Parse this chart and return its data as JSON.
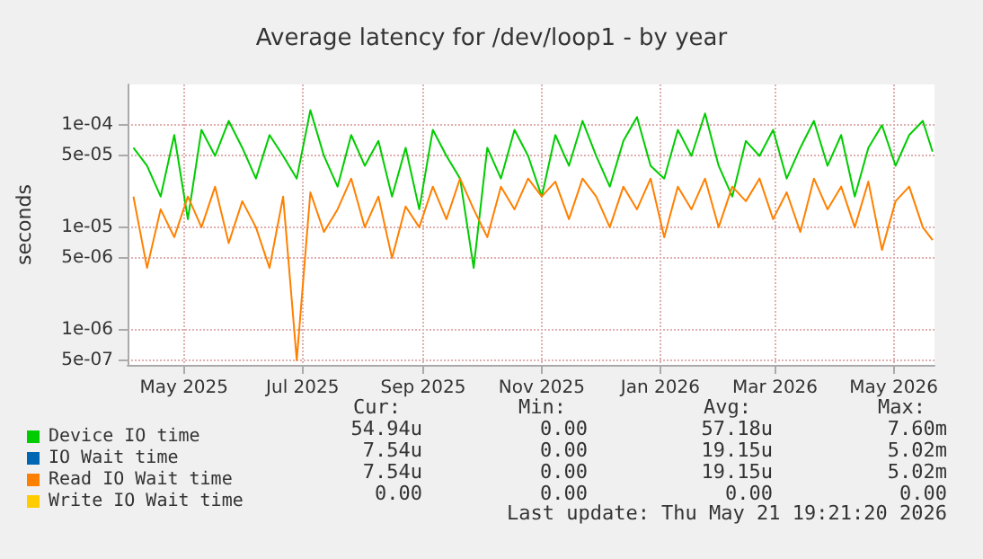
{
  "chart_data": {
    "type": "line",
    "title": "Average latency for /dev/loop1 - by year",
    "ylabel": "seconds",
    "log": "y",
    "grid": true,
    "legend": "bottom",
    "x": [
      "2025-04-05",
      "2025-04-12",
      "2025-04-19",
      "2025-04-26",
      "2025-05-03",
      "2025-05-10",
      "2025-05-17",
      "2025-05-24",
      "2025-05-31",
      "2025-06-07",
      "2025-06-14",
      "2025-06-21",
      "2025-06-28",
      "2025-07-05",
      "2025-07-12",
      "2025-07-19",
      "2025-07-26",
      "2025-08-02",
      "2025-08-09",
      "2025-08-16",
      "2025-08-23",
      "2025-08-30",
      "2025-09-06",
      "2025-09-13",
      "2025-09-20",
      "2025-09-27",
      "2025-10-04",
      "2025-10-11",
      "2025-10-18",
      "2025-10-25",
      "2025-11-01",
      "2025-11-08",
      "2025-11-15",
      "2025-11-22",
      "2025-11-29",
      "2025-12-06",
      "2025-12-13",
      "2025-12-20",
      "2025-12-27",
      "2026-01-03",
      "2026-01-10",
      "2026-01-17",
      "2026-01-24",
      "2026-01-31",
      "2026-02-07",
      "2026-02-14",
      "2026-02-21",
      "2026-02-28",
      "2026-03-07",
      "2026-03-14",
      "2026-03-21",
      "2026-03-28",
      "2026-04-04",
      "2026-04-11",
      "2026-04-18",
      "2026-04-25",
      "2026-05-02",
      "2026-05-09",
      "2026-05-16",
      "2026-05-21"
    ],
    "xlim": [
      "2025-04-02",
      "2026-05-22"
    ],
    "xticks": [
      {
        "value": "2025-05-01",
        "label": "May 2025"
      },
      {
        "value": "2025-07-01",
        "label": "Jul 2025"
      },
      {
        "value": "2025-09-01",
        "label": "Sep 2025"
      },
      {
        "value": "2025-11-01",
        "label": "Nov 2025"
      },
      {
        "value": "2026-01-01",
        "label": "Jan 2026"
      },
      {
        "value": "2026-03-01",
        "label": "Mar 2026"
      },
      {
        "value": "2026-05-01",
        "label": "May 2026"
      }
    ],
    "ylim": [
      4.5e-07,
      0.00025
    ],
    "yticks": [
      {
        "value": 5e-07,
        "label": "5e-07"
      },
      {
        "value": 1e-06,
        "label": "1e-06"
      },
      {
        "value": 5e-06,
        "label": "5e-06"
      },
      {
        "value": 1e-05,
        "label": "1e-05"
      },
      {
        "value": 5e-05,
        "label": "5e-05"
      },
      {
        "value": 0.0001,
        "label": "1e-04"
      }
    ],
    "series": [
      {
        "name": "Device IO time",
        "color": "#00cc00",
        "values": [
          6e-05,
          4e-05,
          2e-05,
          8e-05,
          1.2e-05,
          9e-05,
          5e-05,
          0.00011,
          6e-05,
          3e-05,
          8e-05,
          5e-05,
          3e-05,
          0.00014,
          5e-05,
          2.5e-05,
          8e-05,
          4e-05,
          7e-05,
          2e-05,
          6e-05,
          1.5e-05,
          9e-05,
          5e-05,
          3e-05,
          4e-06,
          6e-05,
          3e-05,
          9e-05,
          5e-05,
          2e-05,
          8e-05,
          4e-05,
          0.00011,
          5e-05,
          2.5e-05,
          7e-05,
          0.00012,
          4e-05,
          3e-05,
          9e-05,
          5e-05,
          0.00013,
          4e-05,
          2e-05,
          7e-05,
          5e-05,
          9e-05,
          3e-05,
          6e-05,
          0.00011,
          4e-05,
          8e-05,
          2e-05,
          6e-05,
          0.0001,
          4e-05,
          8e-05,
          0.00011,
          5.5e-05
        ]
      },
      {
        "name": "IO Wait time",
        "color": "#0066b3",
        "values": [
          null,
          null,
          null,
          null,
          null,
          null,
          null,
          null,
          null,
          null,
          null,
          null,
          null,
          null,
          null,
          null,
          null,
          null,
          null,
          null,
          null,
          null,
          null,
          null,
          null,
          null,
          null,
          null,
          null,
          null,
          null,
          null,
          null,
          null,
          null,
          null,
          null,
          null,
          null,
          null,
          null,
          null,
          null,
          null,
          null,
          null,
          null,
          null,
          null,
          null,
          null,
          null,
          null,
          null,
          null,
          null,
          null,
          null,
          null,
          null
        ]
      },
      {
        "name": "Read IO Wait time",
        "color": "#ff8000",
        "values": [
          2e-05,
          4e-06,
          1.5e-05,
          8e-06,
          2e-05,
          1e-05,
          2.5e-05,
          7e-06,
          1.8e-05,
          1e-05,
          4e-06,
          2e-05,
          5e-07,
          2.2e-05,
          9e-06,
          1.5e-05,
          3e-05,
          1e-05,
          2e-05,
          5e-06,
          1.6e-05,
          1e-05,
          2.5e-05,
          1.2e-05,
          3e-05,
          1.5e-05,
          8e-06,
          2.5e-05,
          1.5e-05,
          3e-05,
          2e-05,
          2.8e-05,
          1.2e-05,
          3e-05,
          2e-05,
          1e-05,
          2.5e-05,
          1.5e-05,
          3e-05,
          8e-06,
          2.5e-05,
          1.5e-05,
          3e-05,
          1e-05,
          2.5e-05,
          1.8e-05,
          3e-05,
          1.2e-05,
          2.2e-05,
          9e-06,
          3e-05,
          1.5e-05,
          2.5e-05,
          1e-05,
          2.8e-05,
          6e-06,
          1.8e-05,
          2.5e-05,
          1e-05,
          7.5e-06
        ]
      },
      {
        "name": "Write IO Wait time",
        "color": "#ffcc00",
        "values": [
          null,
          null,
          null,
          null,
          null,
          null,
          null,
          null,
          null,
          null,
          null,
          null,
          null,
          null,
          null,
          null,
          null,
          null,
          null,
          null,
          null,
          null,
          null,
          null,
          null,
          null,
          null,
          null,
          null,
          null,
          null,
          null,
          null,
          null,
          null,
          null,
          null,
          null,
          null,
          null,
          null,
          null,
          null,
          null,
          null,
          null,
          null,
          null,
          null,
          null,
          null,
          null,
          null,
          null,
          null,
          null,
          null,
          null,
          null,
          null
        ]
      }
    ],
    "annotations": [
      "Cur:",
      "Min:",
      "Avg:",
      "Max:",
      "54.94u",
      "0.00",
      "57.18u",
      "7.60m",
      "7.54u",
      "0.00",
      "19.15u",
      "5.02m",
      "7.54u",
      "0.00",
      "19.15u",
      "5.02m",
      "0.00",
      "0.00",
      "0.00",
      "0.00",
      "Last update: Thu May 21 19:21:20 2026"
    ]
  }
}
